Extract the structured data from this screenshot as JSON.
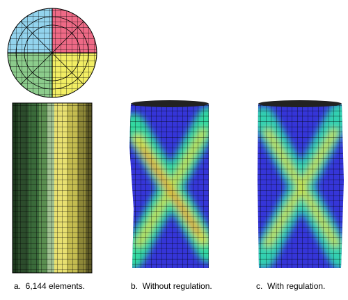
{
  "panels": [
    {
      "caption": "a.  6,144 elements."
    },
    {
      "caption": "b.  Without regulation."
    },
    {
      "caption": "c.  With regulation."
    }
  ]
}
